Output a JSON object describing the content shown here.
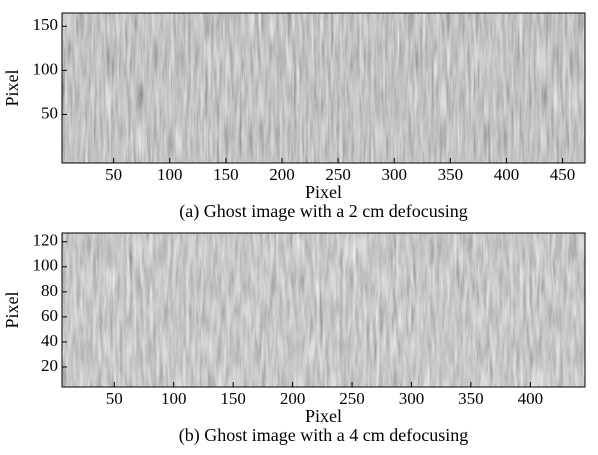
{
  "chart_data": [
    {
      "type": "image",
      "xlabel": "Pixel",
      "ylabel": "Pixel",
      "caption": "(a) Ghost image with a 2 cm defocusing",
      "xlim": [
        4,
        470
      ],
      "ylim": [
        -5,
        165
      ],
      "xticks": [
        50,
        100,
        150,
        200,
        250,
        300,
        350,
        400,
        450
      ],
      "yticks": [
        50,
        100,
        150
      ]
    },
    {
      "type": "image",
      "xlabel": "Pixel",
      "ylabel": "Pixel",
      "caption": "(b) Ghost image with a 4 cm defocusing",
      "xlim": [
        6,
        446
      ],
      "ylim": [
        4,
        127
      ],
      "xticks": [
        50,
        100,
        150,
        200,
        250,
        300,
        350,
        400
      ],
      "yticks": [
        20,
        40,
        60,
        80,
        100,
        120
      ]
    }
  ]
}
